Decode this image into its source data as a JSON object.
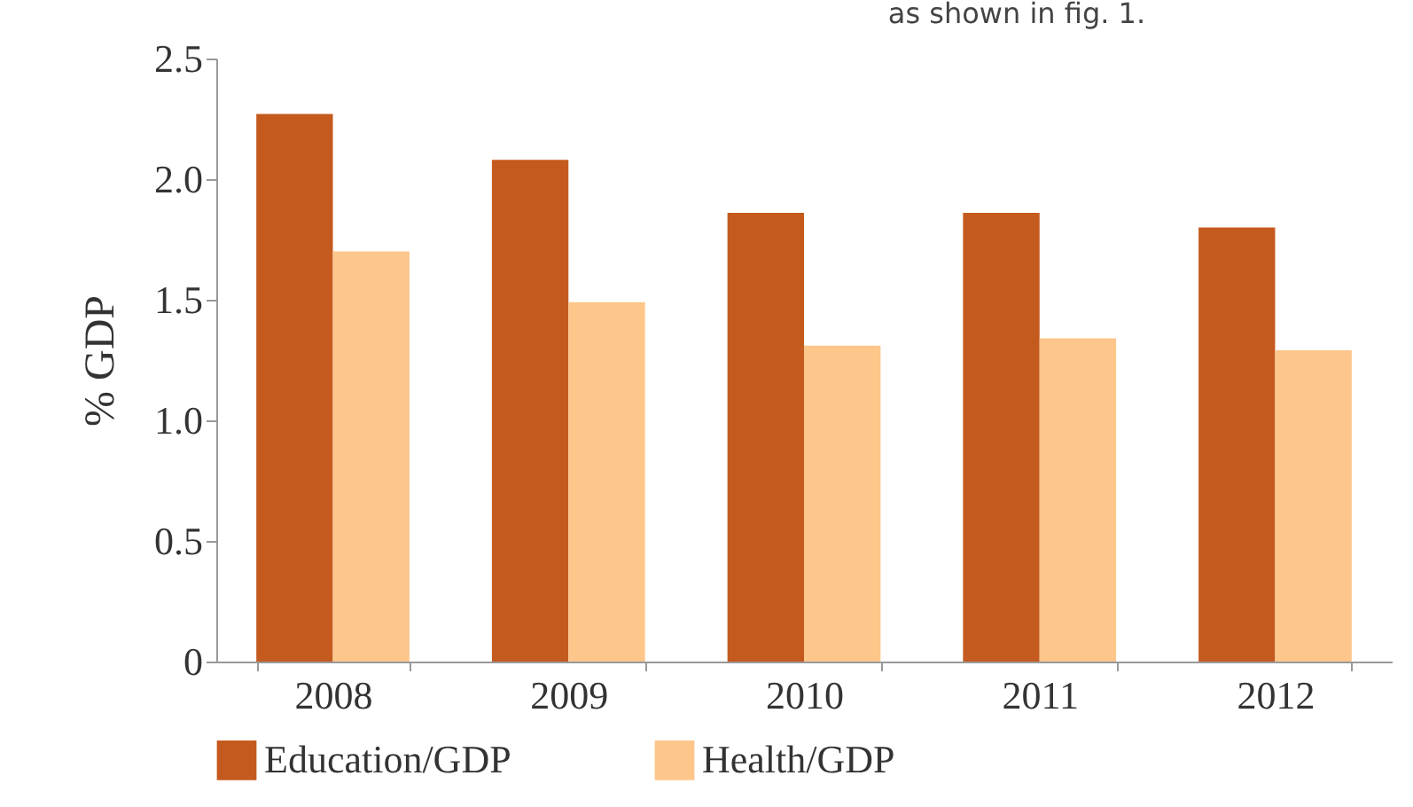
{
  "chart_data": {
    "type": "bar",
    "ylabel": "% GDP",
    "annotations": [
      "as shown in fig. 1."
    ],
    "categories": [
      "2008",
      "2009",
      "2010",
      "2011",
      "2012"
    ],
    "series": [
      {
        "name": "Education/GDP",
        "color": "#c55a1e",
        "values": [
          2.27,
          2.08,
          1.86,
          1.86,
          1.8
        ]
      },
      {
        "name": "Health/GDP",
        "color": "#fdc68a",
        "values": [
          1.7,
          1.49,
          1.31,
          1.34,
          1.29
        ]
      }
    ],
    "ylim": [
      0,
      2.5
    ],
    "yticks": [
      0,
      {
        "value": 0.5,
        "label": "0.5"
      },
      {
        "value": 1,
        "label": "1.0"
      },
      {
        "value": 1.5,
        "label": "1.5"
      },
      {
        "value": 2,
        "label": "2.0"
      },
      {
        "value": 2.5,
        "label": "2.5"
      }
    ],
    "grid": false,
    "legend": "bottom"
  }
}
